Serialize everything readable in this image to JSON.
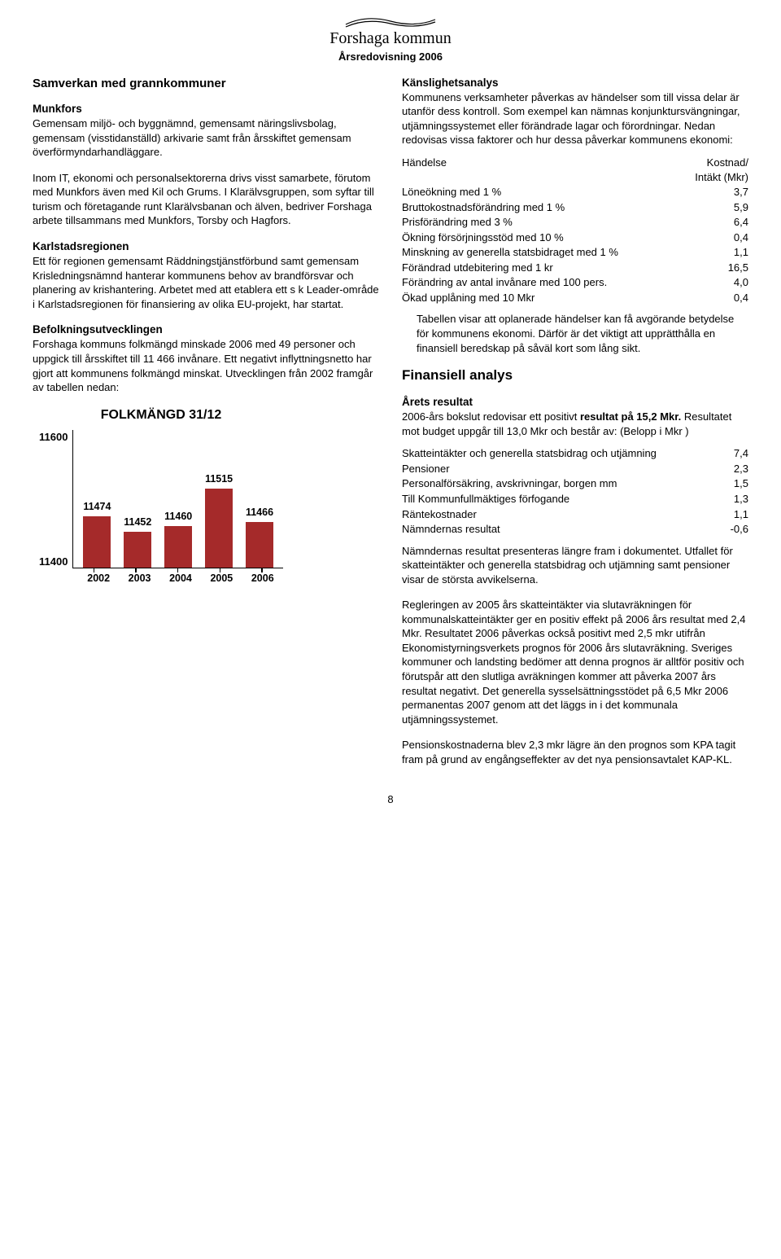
{
  "header": {
    "org": "Forshaga kommun",
    "subtitle": "Årsredovisning 2006"
  },
  "left": {
    "h1": "Samverkan med grannkommuner",
    "munkfors_h": "Munkfors",
    "munkfors_p1": "Gemensam miljö- och byggnämnd, gemensamt näringslivsbolag, gemensam (visstidanställd) arkivarie samt från årsskiftet gemensam överförmyndarhandläggare.",
    "munkfors_p2": "Inom IT, ekonomi och personalsektorerna drivs visst samarbete, förutom med Munkfors även med Kil och Grums. I Klarälvsgruppen, som syftar till turism och företagande runt Klarälvsbanan och älven, bedriver Forshaga arbete tillsammans med Munkfors, Torsby och Hagfors.",
    "karlstad_h": "Karlstadsregionen",
    "karlstad_p": "Ett för regionen gemensamt Räddningstjänstförbund samt gemensam Krisledningsnämnd hanterar kommunens behov av brandförsvar och planering av krishantering. Arbetet med att etablera ett s k Leader-område i Karlstadsregionen för finansiering av olika EU-projekt, har startat.",
    "befolkning_h": "Befolkningsutvecklingen",
    "befolkning_p": "Forshaga kommuns folkmängd minskade 2006 med 49 personer och uppgick till årsskiftet till 11 466 invånare. Ett negativt inflyttningsnetto har gjort att kommunens folkmängd minskat. Utvecklingen från 2002 framgår av tabellen nedan:"
  },
  "chart": {
    "title": "FOLKMÄNGD 31/12",
    "type": "bar",
    "y_min": 11400,
    "y_max": 11600,
    "y_ticks": [
      "11600",
      "11400"
    ],
    "x_labels": [
      "2002",
      "2003",
      "2004",
      "2005",
      "2006"
    ],
    "values": [
      11474,
      11452,
      11460,
      11515,
      11466
    ],
    "value_labels": [
      "11474",
      "11452",
      "11460",
      "11515",
      "11466"
    ],
    "bar_color": "#a52a2a",
    "bg": "#ffffff",
    "axis_color": "#000000"
  },
  "right": {
    "sens_h": "Känslighetsanalys",
    "sens_p": "Kommunens verksamheter påverkas av händelser som till vissa delar är utanför dess kontroll. Som exempel kan nämnas konjunktursvängningar, utjämningssystemet eller förändrade lagar och förordningar. Nedan redovisas vissa faktorer och hur dessa påverkar kommunens ekonomi:",
    "sens_table": {
      "head_l": "Händelse",
      "head_r1": "Kostnad/",
      "head_r2": "Intäkt (Mkr)",
      "rows": [
        [
          "Löneökning med 1 %",
          "3,7"
        ],
        [
          "Bruttokostnadsförändring med 1 %",
          "5,9"
        ],
        [
          "Prisförändring med 3 %",
          "6,4"
        ],
        [
          "Ökning försörjningsstöd med 10 %",
          "0,4"
        ],
        [
          "Minskning av generella statsbidraget med 1 %",
          "1,1"
        ],
        [
          "Förändrad utdebitering med 1 kr",
          "16,5"
        ],
        [
          "Förändring av antal invånare med 100 pers.",
          "4,0"
        ],
        [
          "Ökad upplåning med 10 Mkr",
          "0,4"
        ]
      ]
    },
    "sens_after": "Tabellen visar att oplanerade händelser kan få avgörande betydelse för kommunens ekonomi. Därför är det viktigt att upprätthålla en finansiell beredskap på såväl kort som lång sikt.",
    "fin_h": "Finansiell analys",
    "arets_h": "Årets resultat",
    "arets_p_pre": "2006-års bokslut redovisar ett positivt ",
    "arets_p_bold": "resultat på 15,2 Mkr.",
    "arets_p_post": " Resultatet mot budget uppgår till 13,0 Mkr och består av: (Belopp i Mkr )",
    "result_table": {
      "rows": [
        [
          "Skatteintäkter och generella statsbidrag och utjämning",
          "7,4"
        ],
        [
          "Pensioner",
          "2,3"
        ],
        [
          "Personalförsäkring, avskrivningar, borgen mm",
          "1,5"
        ],
        [
          "Till Kommunfullmäktiges förfogande",
          "1,3"
        ],
        [
          "Räntekostnader",
          "1,1"
        ],
        [
          "Nämndernas resultat",
          "-0,6"
        ]
      ]
    },
    "p_namnder": "Nämndernas resultat presenteras längre fram i dokumentet. Utfallet för skatteintäkter och generella statsbidrag och utjämning samt pensioner visar de största avvikelserna.",
    "p_reglering": "Regleringen av 2005 års skatteintäkter via slutavräkningen för kommunalskatteintäkter ger en positiv effekt på 2006 års resultat med 2,4 Mkr. Resultatet 2006 påverkas också positivt med 2,5 mkr utifrån Ekonomistyrningsverkets prognos för 2006 års slutavräkning. Sveriges kommuner och landsting bedömer att denna prognos är alltför positiv och förutspår att den slutliga avräkningen kommer att påverka 2007 års resultat negativt. Det generella sysselsättningsstödet på 6,5 Mkr 2006 permanentas 2007 genom att det läggs in i det kommunala utjämningssystemet.",
    "p_pension": "Pensionskostnaderna blev 2,3 mkr lägre än den prognos som KPA tagit fram på grund av engångseffekter av det nya pensionsavtalet KAP-KL."
  },
  "pagenum": "8"
}
